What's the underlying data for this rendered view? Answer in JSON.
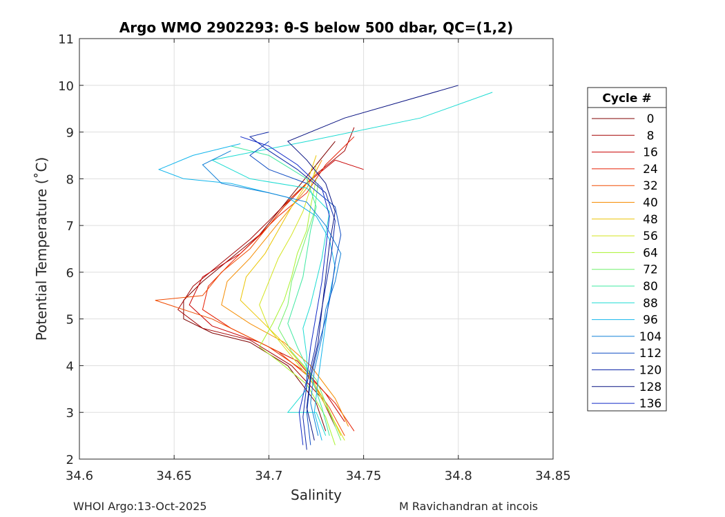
{
  "chart_data": {
    "type": "line",
    "title": "Argo WMO 2902293: θ-S below 500 dbar,  QC=(1,2)",
    "xlabel": "Salinity",
    "ylabel": "Potential Temperature (˚C)",
    "xlim": [
      34.6,
      34.85
    ],
    "ylim": [
      2,
      11
    ],
    "xticks": [
      34.6,
      34.65,
      34.7,
      34.75,
      34.8,
      34.85
    ],
    "xtick_labels": [
      "34.6",
      "34.65",
      "34.7",
      "34.75",
      "34.8",
      "34.85"
    ],
    "yticks": [
      2,
      3,
      4,
      5,
      6,
      7,
      8,
      9,
      10,
      11
    ],
    "ytick_labels": [
      "2",
      "3",
      "4",
      "5",
      "6",
      "7",
      "8",
      "9",
      "10",
      "11"
    ],
    "grid": true,
    "legend": {
      "title": "Cycle #",
      "placement": "outside-right",
      "entries": [
        {
          "label": "0",
          "color": "#7f0000"
        },
        {
          "label": "8",
          "color": "#a30000"
        },
        {
          "label": "16",
          "color": "#c80000"
        },
        {
          "label": "24",
          "color": "#e61d00"
        },
        {
          "label": "32",
          "color": "#f04a00"
        },
        {
          "label": "40",
          "color": "#f58c00"
        },
        {
          "label": "48",
          "color": "#ebc400"
        },
        {
          "label": "56",
          "color": "#d3e41c"
        },
        {
          "label": "64",
          "color": "#a8f22c"
        },
        {
          "label": "72",
          "color": "#6ef06a"
        },
        {
          "label": "80",
          "color": "#3ee8a0"
        },
        {
          "label": "88",
          "color": "#1adbd2"
        },
        {
          "label": "96",
          "color": "#10b4ec"
        },
        {
          "label": "104",
          "color": "#0f7fd6"
        },
        {
          "label": "112",
          "color": "#0d4bc2"
        },
        {
          "label": "120",
          "color": "#0a23a6"
        },
        {
          "label": "128",
          "color": "#061080"
        },
        {
          "label": "136",
          "color": "#0f28c8"
        }
      ]
    },
    "series": [
      {
        "color": "#7f0000",
        "points": [
          [
            34.73,
            2.6
          ],
          [
            34.725,
            3.2
          ],
          [
            34.71,
            4.0
          ],
          [
            34.69,
            4.5
          ],
          [
            34.67,
            4.7
          ],
          [
            34.655,
            5.0
          ],
          [
            34.655,
            5.4
          ],
          [
            34.665,
            5.8
          ],
          [
            34.68,
            6.3
          ],
          [
            34.695,
            6.8
          ],
          [
            34.705,
            7.3
          ],
          [
            34.715,
            7.8
          ],
          [
            34.725,
            8.3
          ],
          [
            34.735,
            8.8
          ]
        ]
      },
      {
        "color": "#a30000",
        "points": [
          [
            34.735,
            2.7
          ],
          [
            34.728,
            3.3
          ],
          [
            34.712,
            4.0
          ],
          [
            34.69,
            4.55
          ],
          [
            34.665,
            4.8
          ],
          [
            34.652,
            5.2
          ],
          [
            34.66,
            5.7
          ],
          [
            34.675,
            6.2
          ],
          [
            34.69,
            6.7
          ],
          [
            34.7,
            7.1
          ],
          [
            34.712,
            7.6
          ],
          [
            34.725,
            8.1
          ],
          [
            34.74,
            8.6
          ],
          [
            34.745,
            9.1
          ]
        ]
      },
      {
        "color": "#c80000",
        "points": [
          [
            34.74,
            2.8
          ],
          [
            34.73,
            3.4
          ],
          [
            34.715,
            4.1
          ],
          [
            34.695,
            4.5
          ],
          [
            34.67,
            4.85
          ],
          [
            34.658,
            5.3
          ],
          [
            34.665,
            5.9
          ],
          [
            34.685,
            6.4
          ],
          [
            34.698,
            6.9
          ],
          [
            34.708,
            7.4
          ],
          [
            34.72,
            7.9
          ],
          [
            34.735,
            8.4
          ],
          [
            34.75,
            8.2
          ]
        ]
      },
      {
        "color": "#e61d00",
        "points": [
          [
            34.745,
            2.6
          ],
          [
            34.735,
            3.2
          ],
          [
            34.718,
            3.9
          ],
          [
            34.7,
            4.4
          ],
          [
            34.68,
            4.8
          ],
          [
            34.665,
            5.2
          ],
          [
            34.668,
            5.7
          ],
          [
            34.68,
            6.2
          ],
          [
            34.695,
            6.8
          ],
          [
            34.705,
            7.2
          ],
          [
            34.72,
            7.7
          ],
          [
            34.73,
            8.3
          ],
          [
            34.745,
            8.9
          ]
        ]
      },
      {
        "color": "#f04a00",
        "points": [
          [
            34.74,
            2.5
          ],
          [
            34.732,
            3.1
          ],
          [
            34.72,
            3.8
          ],
          [
            34.705,
            4.3
          ],
          [
            34.685,
            4.7
          ],
          [
            34.67,
            5.0
          ],
          [
            34.64,
            5.4
          ],
          [
            34.665,
            5.5
          ],
          [
            34.675,
            6.0
          ],
          [
            34.69,
            6.5
          ],
          [
            34.7,
            7.0
          ],
          [
            34.712,
            7.6
          ],
          [
            34.725,
            8.1
          ]
        ]
      },
      {
        "color": "#f58c00",
        "points": [
          [
            34.742,
            2.7
          ],
          [
            34.735,
            3.3
          ],
          [
            34.722,
            4.0
          ],
          [
            34.708,
            4.5
          ],
          [
            34.69,
            4.9
          ],
          [
            34.675,
            5.3
          ],
          [
            34.678,
            5.8
          ],
          [
            34.69,
            6.3
          ],
          [
            34.7,
            6.8
          ],
          [
            34.71,
            7.3
          ],
          [
            34.72,
            7.8
          ],
          [
            34.728,
            8.4
          ]
        ]
      },
      {
        "color": "#ebc400",
        "points": [
          [
            34.738,
            2.5
          ],
          [
            34.73,
            3.2
          ],
          [
            34.72,
            3.9
          ],
          [
            34.705,
            4.6
          ],
          [
            34.695,
            5.0
          ],
          [
            34.685,
            5.4
          ],
          [
            34.688,
            5.9
          ],
          [
            34.698,
            6.4
          ],
          [
            34.705,
            6.9
          ],
          [
            34.712,
            7.4
          ],
          [
            34.72,
            7.9
          ],
          [
            34.725,
            8.5
          ]
        ]
      },
      {
        "color": "#d3e41c",
        "points": [
          [
            34.74,
            2.4
          ],
          [
            34.732,
            3.0
          ],
          [
            34.722,
            3.7
          ],
          [
            34.71,
            4.3
          ],
          [
            34.7,
            4.8
          ],
          [
            34.695,
            5.3
          ],
          [
            34.7,
            5.8
          ],
          [
            34.705,
            6.3
          ],
          [
            34.712,
            6.8
          ],
          [
            34.718,
            7.3
          ],
          [
            34.722,
            7.8
          ],
          [
            34.725,
            8.3
          ]
        ]
      },
      {
        "color": "#a8f22c",
        "points": [
          [
            34.735,
            2.3
          ],
          [
            34.73,
            2.9
          ],
          [
            34.72,
            3.6
          ],
          [
            34.705,
            4.1
          ],
          [
            34.695,
            4.4
          ],
          [
            34.702,
            4.9
          ],
          [
            34.708,
            5.4
          ],
          [
            34.712,
            5.9
          ],
          [
            34.715,
            6.4
          ],
          [
            34.72,
            6.9
          ],
          [
            34.722,
            7.4
          ],
          [
            34.725,
            8.0
          ]
        ]
      },
      {
        "color": "#6ef06a",
        "points": [
          [
            34.738,
            2.4
          ],
          [
            34.732,
            3.0
          ],
          [
            34.725,
            3.7
          ],
          [
            34.712,
            4.3
          ],
          [
            34.705,
            4.8
          ],
          [
            34.71,
            5.3
          ],
          [
            34.712,
            5.8
          ],
          [
            34.716,
            6.3
          ],
          [
            34.72,
            6.8
          ],
          [
            34.724,
            7.3
          ],
          [
            34.726,
            7.9
          ]
        ]
      },
      {
        "color": "#3ee8a0",
        "points": [
          [
            34.732,
            2.5
          ],
          [
            34.728,
            3.1
          ],
          [
            34.722,
            3.8
          ],
          [
            34.715,
            4.4
          ],
          [
            34.71,
            4.9
          ],
          [
            34.714,
            5.4
          ],
          [
            34.718,
            5.9
          ],
          [
            34.72,
            6.4
          ],
          [
            34.722,
            6.9
          ],
          [
            34.725,
            7.4
          ],
          [
            34.72,
            8.0
          ],
          [
            34.7,
            8.5
          ],
          [
            34.68,
            8.7
          ]
        ]
      },
      {
        "color": "#1adbd2",
        "points": [
          [
            34.73,
            2.5
          ],
          [
            34.725,
            3.0
          ],
          [
            34.71,
            3.0
          ],
          [
            34.72,
            3.5
          ],
          [
            34.72,
            4.2
          ],
          [
            34.718,
            4.8
          ],
          [
            34.722,
            5.3
          ],
          [
            34.725,
            5.8
          ],
          [
            34.728,
            6.3
          ],
          [
            34.73,
            6.8
          ],
          [
            34.732,
            7.3
          ],
          [
            34.72,
            7.8
          ],
          [
            34.69,
            8.0
          ],
          [
            34.67,
            8.4
          ],
          [
            34.72,
            8.8
          ],
          [
            34.78,
            9.3
          ],
          [
            34.818,
            9.85
          ]
        ]
      },
      {
        "color": "#10b4ec",
        "points": [
          [
            34.728,
            2.4
          ],
          [
            34.724,
            3.0
          ],
          [
            34.726,
            3.7
          ],
          [
            34.728,
            4.3
          ],
          [
            34.73,
            4.9
          ],
          [
            34.732,
            5.5
          ],
          [
            34.735,
            6.1
          ],
          [
            34.732,
            6.7
          ],
          [
            34.725,
            7.2
          ],
          [
            34.71,
            7.6
          ],
          [
            34.68,
            7.9
          ],
          [
            34.655,
            8.0
          ],
          [
            34.642,
            8.2
          ],
          [
            34.66,
            8.5
          ],
          [
            34.685,
            8.75
          ]
        ]
      },
      {
        "color": "#0f7fd6",
        "points": [
          [
            34.726,
            2.5
          ],
          [
            34.722,
            3.2
          ],
          [
            34.724,
            3.9
          ],
          [
            34.728,
            4.6
          ],
          [
            34.73,
            5.2
          ],
          [
            34.735,
            5.8
          ],
          [
            34.738,
            6.4
          ],
          [
            34.73,
            7.0
          ],
          [
            34.72,
            7.5
          ],
          [
            34.7,
            7.7
          ],
          [
            34.675,
            7.9
          ],
          [
            34.665,
            8.3
          ],
          [
            34.68,
            8.6
          ]
        ]
      },
      {
        "color": "#0d4bc2",
        "points": [
          [
            34.722,
            2.3
          ],
          [
            34.72,
            3.0
          ],
          [
            34.722,
            3.7
          ],
          [
            34.726,
            4.4
          ],
          [
            34.73,
            5.0
          ],
          [
            34.733,
            5.6
          ],
          [
            34.735,
            6.2
          ],
          [
            34.738,
            6.8
          ],
          [
            34.735,
            7.4
          ],
          [
            34.72,
            7.9
          ],
          [
            34.7,
            8.2
          ],
          [
            34.69,
            8.5
          ],
          [
            34.7,
            8.8
          ]
        ]
      },
      {
        "color": "#0a23a6",
        "points": [
          [
            34.72,
            2.2
          ],
          [
            34.718,
            2.9
          ],
          [
            34.72,
            3.6
          ],
          [
            34.724,
            4.3
          ],
          [
            34.727,
            5.0
          ],
          [
            34.73,
            5.7
          ],
          [
            34.733,
            6.4
          ],
          [
            34.735,
            7.1
          ],
          [
            34.73,
            7.7
          ],
          [
            34.715,
            8.2
          ],
          [
            34.7,
            8.6
          ],
          [
            34.69,
            8.9
          ],
          [
            34.7,
            9.0
          ]
        ]
      },
      {
        "color": "#061080",
        "points": [
          [
            34.724,
            2.4
          ],
          [
            34.72,
            3.1
          ],
          [
            34.722,
            3.8
          ],
          [
            34.726,
            4.5
          ],
          [
            34.728,
            5.2
          ],
          [
            34.73,
            5.9
          ],
          [
            34.732,
            6.6
          ],
          [
            34.735,
            7.3
          ],
          [
            34.73,
            7.9
          ],
          [
            34.72,
            8.4
          ],
          [
            34.71,
            8.8
          ],
          [
            34.74,
            9.3
          ],
          [
            34.8,
            10.0
          ]
        ]
      },
      {
        "color": "#0f28c8",
        "points": [
          [
            34.718,
            2.3
          ],
          [
            34.716,
            3.0
          ],
          [
            34.72,
            3.7
          ],
          [
            34.722,
            4.4
          ],
          [
            34.725,
            5.1
          ],
          [
            34.728,
            5.8
          ],
          [
            34.73,
            6.5
          ],
          [
            34.732,
            7.2
          ],
          [
            34.728,
            7.8
          ],
          [
            34.715,
            8.3
          ],
          [
            34.7,
            8.7
          ],
          [
            34.685,
            8.9
          ]
        ]
      }
    ]
  },
  "footer": {
    "left": "WHOI Argo:13-Oct-2025",
    "right": "M Ravichandran at incois"
  }
}
